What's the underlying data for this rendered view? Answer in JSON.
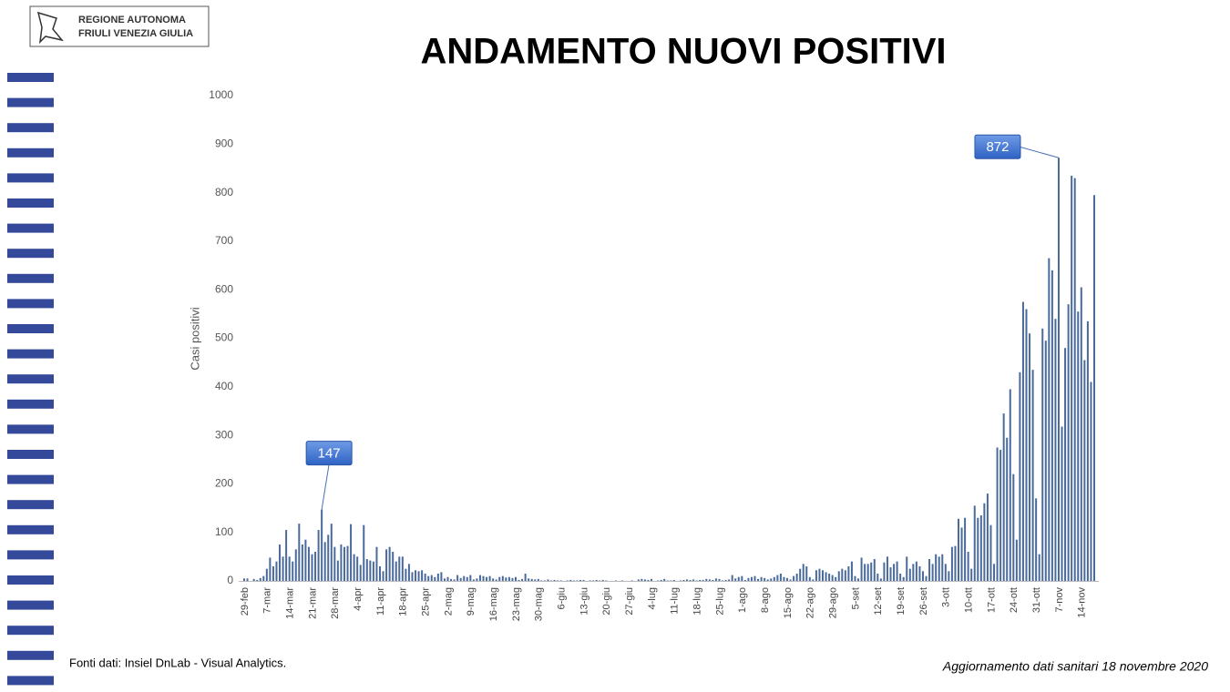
{
  "logo": {
    "line1": "REGIONE AUTONOMA",
    "line2": "FRIULI VENEZIA GIULIA"
  },
  "source": "Fonti dati: Insiel DnLab - Visual Analytics.",
  "updated": "Aggiornamento dati sanitari 18 novembre 2020",
  "chart_data": {
    "type": "bar",
    "title": "ANDAMENTO NUOVI POSITIVI",
    "y_label": "Casi positivi",
    "color": "#4a6a9c",
    "ylim": [
      0,
      1000
    ],
    "yticks": [
      0,
      100,
      200,
      300,
      400,
      500,
      600,
      700,
      800,
      900,
      1000
    ],
    "grid": false,
    "categories": [
      "29-feb",
      null,
      null,
      null,
      null,
      null,
      null,
      "7-mar",
      null,
      null,
      null,
      null,
      null,
      null,
      "14-mar",
      null,
      null,
      null,
      null,
      null,
      null,
      "21-mar",
      null,
      null,
      null,
      null,
      null,
      null,
      "28-mar",
      null,
      null,
      null,
      null,
      null,
      null,
      "4-apr",
      null,
      null,
      null,
      null,
      null,
      null,
      "11-apr",
      null,
      null,
      null,
      null,
      null,
      null,
      "18-apr",
      null,
      null,
      null,
      null,
      null,
      null,
      "25-apr",
      null,
      null,
      null,
      null,
      null,
      null,
      "2-mag",
      null,
      null,
      null,
      null,
      null,
      null,
      "9-mag",
      null,
      null,
      null,
      null,
      null,
      null,
      "16-mag",
      null,
      null,
      null,
      null,
      null,
      null,
      "23-mag",
      null,
      null,
      null,
      null,
      null,
      null,
      "30-mag",
      null,
      null,
      null,
      null,
      null,
      null,
      "6-giu",
      null,
      null,
      null,
      null,
      null,
      null,
      "13-giu",
      null,
      null,
      null,
      null,
      null,
      null,
      "20-giu",
      null,
      null,
      null,
      null,
      null,
      null,
      "27-giu",
      null,
      null,
      null,
      null,
      null,
      null,
      "4-lug",
      null,
      null,
      null,
      null,
      null,
      null,
      "11-lug",
      null,
      null,
      null,
      null,
      null,
      null,
      "18-lug",
      null,
      null,
      null,
      null,
      null,
      null,
      "25-lug",
      null,
      null,
      null,
      null,
      null,
      null,
      "1-ago",
      null,
      null,
      null,
      null,
      null,
      null,
      "8-ago",
      null,
      null,
      null,
      null,
      null,
      null,
      "15-ago",
      null,
      null,
      null,
      null,
      null,
      null,
      "22-ago",
      null,
      null,
      null,
      null,
      null,
      null,
      "29-ago",
      null,
      null,
      null,
      null,
      null,
      null,
      "5-set",
      null,
      null,
      null,
      null,
      null,
      null,
      "12-set",
      null,
      null,
      null,
      null,
      null,
      null,
      "19-set",
      null,
      null,
      null,
      null,
      null,
      null,
      "26-set",
      null,
      null,
      null,
      null,
      null,
      null,
      "3-ott",
      null,
      null,
      null,
      null,
      null,
      null,
      "10-ott",
      null,
      null,
      null,
      null,
      null,
      null,
      "17-ott",
      null,
      null,
      null,
      null,
      null,
      null,
      "24-ott",
      null,
      null,
      null,
      null,
      null,
      null,
      "31-ott",
      null,
      null,
      null,
      null,
      null,
      null,
      "7-nov",
      null,
      null,
      null,
      null,
      null,
      null,
      "14-nov",
      null,
      null,
      null,
      null
    ],
    "values": [
      5,
      5,
      0,
      4,
      2,
      6,
      10,
      25,
      48,
      30,
      40,
      75,
      50,
      105,
      50,
      40,
      65,
      118,
      75,
      85,
      70,
      55,
      60,
      105,
      147,
      80,
      95,
      118,
      70,
      42,
      75,
      70,
      72,
      117,
      55,
      50,
      33,
      115,
      45,
      42,
      40,
      70,
      30,
      20,
      65,
      70,
      60,
      40,
      50,
      50,
      25,
      35,
      18,
      22,
      20,
      22,
      15,
      10,
      12,
      8,
      15,
      18,
      5,
      8,
      4,
      3,
      12,
      6,
      10,
      8,
      12,
      3,
      5,
      12,
      10,
      8,
      10,
      5,
      3,
      8,
      10,
      7,
      8,
      6,
      8,
      2,
      4,
      15,
      5,
      4,
      3,
      4,
      1,
      1,
      3,
      1,
      2,
      1,
      1,
      0,
      1,
      2,
      1,
      1,
      2,
      2,
      0,
      1,
      1,
      2,
      1,
      2,
      1,
      0,
      0,
      1,
      0,
      1,
      0,
      0,
      1,
      0,
      3,
      4,
      3,
      2,
      4,
      0,
      1,
      2,
      4,
      1,
      1,
      2,
      0,
      1,
      2,
      3,
      2,
      3,
      1,
      2,
      2,
      4,
      3,
      2,
      5,
      4,
      1,
      2,
      3,
      12,
      5,
      8,
      10,
      2,
      6,
      8,
      10,
      4,
      8,
      6,
      3,
      5,
      8,
      12,
      15,
      8,
      6,
      3,
      10,
      15,
      25,
      35,
      30,
      8,
      3,
      22,
      25,
      22,
      18,
      15,
      12,
      8,
      20,
      25,
      22,
      30,
      40,
      10,
      5,
      48,
      35,
      35,
      38,
      45,
      15,
      5,
      38,
      50,
      28,
      35,
      40,
      15,
      8,
      50,
      25,
      35,
      40,
      30,
      20,
      10,
      45,
      35,
      55,
      50,
      55,
      35,
      20,
      70,
      72,
      128,
      110,
      130,
      60,
      25,
      155,
      130,
      135,
      160,
      180,
      115,
      35,
      275,
      270,
      345,
      295,
      395,
      220,
      85,
      430,
      575,
      560,
      510,
      435,
      170,
      55,
      520,
      495,
      665,
      640,
      540,
      872,
      318,
      480,
      570,
      835,
      830,
      555,
      605,
      455,
      535,
      410,
      795
    ]
  }
}
